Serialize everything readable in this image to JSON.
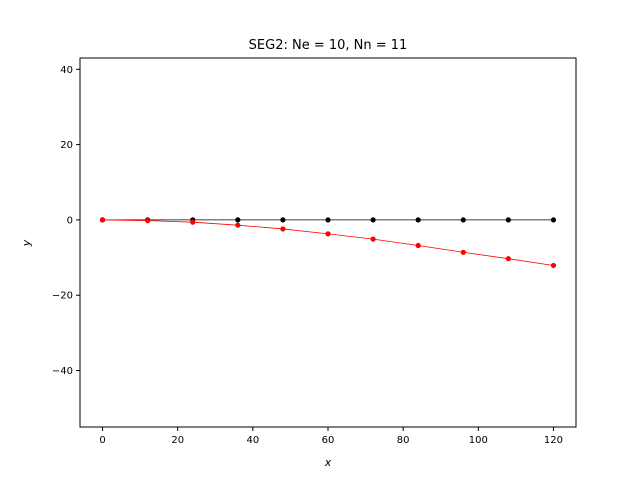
{
  "chart_data": {
    "type": "line",
    "title": "SEG2: Ne = 10, Nn = 11",
    "xlabel": "x",
    "ylabel": "y",
    "xlim": [
      -6,
      126
    ],
    "ylim": [
      -55,
      43
    ],
    "xticks": [
      0,
      20,
      40,
      60,
      80,
      100,
      120
    ],
    "yticks": [
      -40,
      -20,
      0,
      20,
      40
    ],
    "xtick_labels": [
      "0",
      "20",
      "40",
      "60",
      "80",
      "100",
      "120"
    ],
    "ytick_labels": [
      "−40",
      "−20",
      "0",
      "20",
      "40"
    ],
    "grid": false,
    "series": [
      {
        "color": "#000000",
        "x": [
          0,
          12,
          24,
          36,
          48,
          60,
          72,
          84,
          96,
          108,
          120
        ],
        "y": [
          0,
          0,
          0,
          0,
          0,
          0,
          0,
          0,
          0,
          0,
          0
        ]
      },
      {
        "color": "#ff0000",
        "x": [
          0,
          12,
          24,
          36,
          48,
          60,
          72,
          84,
          96,
          108,
          120
        ],
        "y": [
          0,
          -0.2,
          -0.6,
          -1.4,
          -2.4,
          -3.7,
          -5.1,
          -6.8,
          -8.6,
          -10.3,
          -12.1
        ]
      }
    ]
  }
}
